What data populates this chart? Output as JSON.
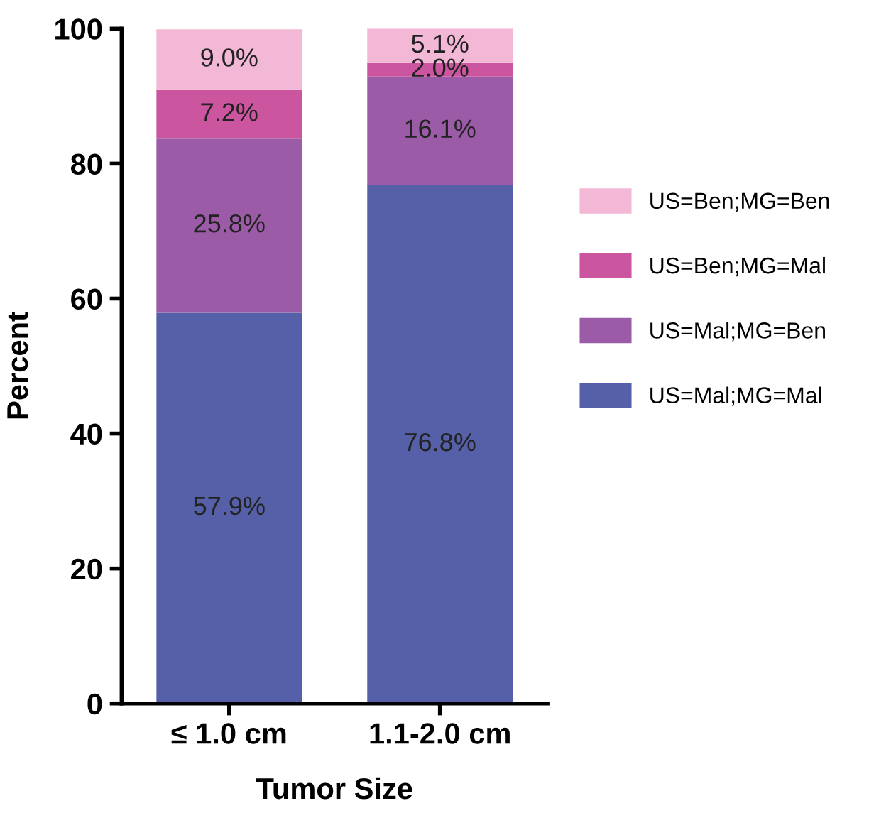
{
  "chart_data": {
    "type": "bar",
    "stacked": true,
    "xlabel": "Tumor Size",
    "ylabel": "Percent",
    "categories": [
      "≤ 1.0 cm",
      "1.1-2.0 cm"
    ],
    "series": [
      {
        "name": "US=Mal;MG=Mal",
        "color": "#5560a8",
        "values": [
          57.9,
          76.8
        ],
        "value_labels": [
          "57.9%",
          "76.8%"
        ]
      },
      {
        "name": "US=Mal;MG=Ben",
        "color": "#9b5ba6",
        "values": [
          25.8,
          16.1
        ],
        "value_labels": [
          "25.8%",
          "16.1%"
        ]
      },
      {
        "name": "US=Ben;MG=Mal",
        "color": "#cc559f",
        "values": [
          7.2,
          2.0
        ],
        "value_labels": [
          "7.2%",
          "2.0%"
        ]
      },
      {
        "name": "US=Ben;MG=Ben",
        "color": "#f2b8d6",
        "values": [
          9.0,
          5.1
        ],
        "value_labels": [
          "9.0%",
          "5.1%"
        ]
      }
    ],
    "ylim": [
      0,
      100
    ],
    "yticks": [
      0,
      20,
      40,
      60,
      80,
      100
    ],
    "grid": false,
    "legend": "right"
  }
}
